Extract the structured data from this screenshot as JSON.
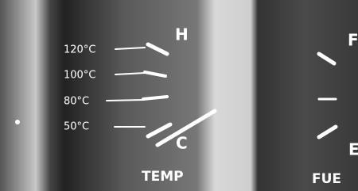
{
  "temp_gauge": {
    "scale_labels": [
      "120°C",
      "100°C",
      "80°C",
      "50°C"
    ],
    "high_label": "H",
    "low_label": "C",
    "title": "TEMP"
  },
  "fuel_gauge": {
    "full_label": "F",
    "empty_label": "E",
    "title": "FUE"
  }
}
